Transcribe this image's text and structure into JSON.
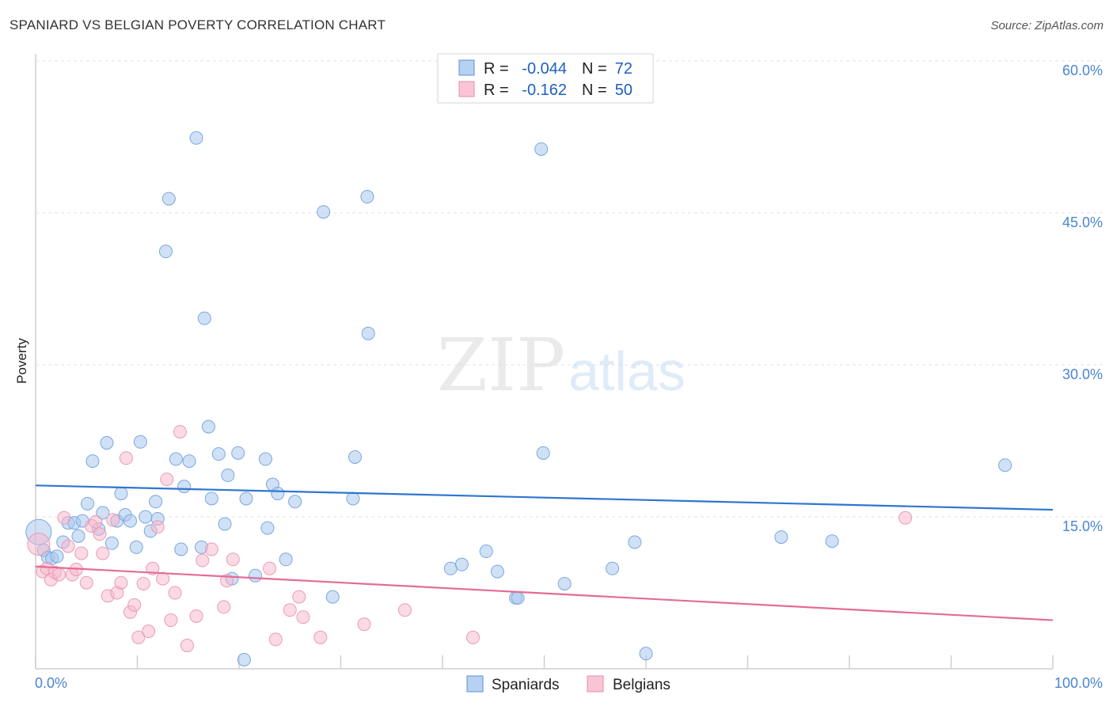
{
  "title": "SPANIARD VS BELGIAN POVERTY CORRELATION CHART",
  "source": "Source: ZipAtlas.com",
  "colors": {
    "spaniards": "#a9c8ee",
    "spaniards_line": "#2f75d1",
    "belgians": "#f7b6c9",
    "belgians_line": "#e46b97",
    "axis_label": "#4a86cf"
  },
  "legend": {
    "r_label": "R =",
    "n_label": "N =",
    "spaniards": {
      "r": "-0.044",
      "n": "72"
    },
    "belgians": {
      "r": "-0.162",
      "n": "50"
    }
  },
  "bottom_legend": [
    "Spaniards",
    "Belgians"
  ],
  "chart_data": {
    "type": "scatter",
    "ylabel": "Poverty",
    "xlim": [
      0,
      100
    ],
    "ylim": [
      0,
      60
    ],
    "xticks_labels": [
      "0.0%",
      "100.0%"
    ],
    "yticks": [
      15,
      30,
      45,
      60
    ],
    "yticks_labels": [
      "15.0%",
      "30.0%",
      "45.0%",
      "60.0%"
    ],
    "grid": true,
    "legend_position": "top-center",
    "series": [
      {
        "name": "Spaniards",
        "trend": [
          [
            0,
            18.1
          ],
          [
            100,
            15.7
          ]
        ],
        "points": [
          [
            0.3,
            13.5
          ],
          [
            0.8,
            11.7
          ],
          [
            1.2,
            11.0
          ],
          [
            1.6,
            10.9
          ],
          [
            2.1,
            11.1
          ],
          [
            2.7,
            12.5
          ],
          [
            3.2,
            14.4
          ],
          [
            3.8,
            14.4
          ],
          [
            4.2,
            13.1
          ],
          [
            4.6,
            14.6
          ],
          [
            5.1,
            16.3
          ],
          [
            5.6,
            20.5
          ],
          [
            6.2,
            13.8
          ],
          [
            6.6,
            15.4
          ],
          [
            7.0,
            22.3
          ],
          [
            7.5,
            12.4
          ],
          [
            8.0,
            14.6
          ],
          [
            8.4,
            17.3
          ],
          [
            8.8,
            15.2
          ],
          [
            9.3,
            14.6
          ],
          [
            9.9,
            12.0
          ],
          [
            10.3,
            22.4
          ],
          [
            10.8,
            15.0
          ],
          [
            11.3,
            13.6
          ],
          [
            11.8,
            16.5
          ],
          [
            12.0,
            14.8
          ],
          [
            12.8,
            41.2
          ],
          [
            13.1,
            46.4
          ],
          [
            13.8,
            20.7
          ],
          [
            14.3,
            11.8
          ],
          [
            14.6,
            18.0
          ],
          [
            15.1,
            20.5
          ],
          [
            15.8,
            52.4
          ],
          [
            16.3,
            12.0
          ],
          [
            16.6,
            34.6
          ],
          [
            17.0,
            23.9
          ],
          [
            17.3,
            16.8
          ],
          [
            18.0,
            21.2
          ],
          [
            18.6,
            14.3
          ],
          [
            18.9,
            19.1
          ],
          [
            19.3,
            8.9
          ],
          [
            19.9,
            21.3
          ],
          [
            20.5,
            0.9
          ],
          [
            20.7,
            16.8
          ],
          [
            21.6,
            9.2
          ],
          [
            22.6,
            20.7
          ],
          [
            22.8,
            13.9
          ],
          [
            23.3,
            18.2
          ],
          [
            23.8,
            17.3
          ],
          [
            24.6,
            10.8
          ],
          [
            25.5,
            16.5
          ],
          [
            28.3,
            45.1
          ],
          [
            29.2,
            7.1
          ],
          [
            31.2,
            16.8
          ],
          [
            31.4,
            20.9
          ],
          [
            32.6,
            46.6
          ],
          [
            32.7,
            33.1
          ],
          [
            40.8,
            9.9
          ],
          [
            41.9,
            10.3
          ],
          [
            44.3,
            11.6
          ],
          [
            45.4,
            9.6
          ],
          [
            47.2,
            7.0
          ],
          [
            47.4,
            7.0
          ],
          [
            49.7,
            51.3
          ],
          [
            49.9,
            21.3
          ],
          [
            52.0,
            8.4
          ],
          [
            56.7,
            9.9
          ],
          [
            58.9,
            12.5
          ],
          [
            60.0,
            1.5
          ],
          [
            73.3,
            13.0
          ],
          [
            78.3,
            12.6
          ],
          [
            95.3,
            20.1
          ]
        ]
      },
      {
        "name": "Belgians",
        "trend": [
          [
            0,
            10.1
          ],
          [
            100,
            4.8
          ]
        ],
        "points": [
          [
            0.3,
            12.3
          ],
          [
            0.7,
            9.6
          ],
          [
            1.1,
            9.9
          ],
          [
            1.5,
            8.8
          ],
          [
            1.9,
            9.5
          ],
          [
            2.3,
            9.3
          ],
          [
            2.8,
            14.9
          ],
          [
            3.2,
            12.1
          ],
          [
            3.6,
            9.3
          ],
          [
            4.0,
            9.8
          ],
          [
            4.5,
            11.4
          ],
          [
            5.0,
            8.5
          ],
          [
            5.5,
            14.1
          ],
          [
            5.9,
            14.5
          ],
          [
            6.3,
            13.3
          ],
          [
            6.6,
            11.4
          ],
          [
            7.1,
            7.2
          ],
          [
            7.6,
            14.7
          ],
          [
            8.0,
            7.5
          ],
          [
            8.4,
            8.5
          ],
          [
            8.9,
            20.8
          ],
          [
            9.3,
            5.6
          ],
          [
            9.7,
            6.3
          ],
          [
            10.1,
            3.1
          ],
          [
            10.6,
            8.4
          ],
          [
            11.1,
            3.7
          ],
          [
            11.5,
            9.9
          ],
          [
            12.0,
            14.0
          ],
          [
            12.5,
            8.9
          ],
          [
            12.9,
            18.7
          ],
          [
            13.3,
            4.8
          ],
          [
            13.7,
            7.5
          ],
          [
            14.2,
            23.4
          ],
          [
            14.9,
            2.3
          ],
          [
            15.8,
            5.2
          ],
          [
            16.4,
            10.7
          ],
          [
            17.3,
            11.8
          ],
          [
            18.5,
            6.1
          ],
          [
            18.8,
            8.7
          ],
          [
            19.4,
            10.8
          ],
          [
            23.0,
            9.9
          ],
          [
            23.6,
            2.9
          ],
          [
            25.0,
            5.8
          ],
          [
            25.9,
            7.1
          ],
          [
            26.3,
            5.1
          ],
          [
            28.0,
            3.1
          ],
          [
            32.3,
            4.4
          ],
          [
            36.3,
            5.8
          ],
          [
            43.0,
            3.1
          ],
          [
            85.5,
            14.9
          ]
        ]
      }
    ]
  }
}
